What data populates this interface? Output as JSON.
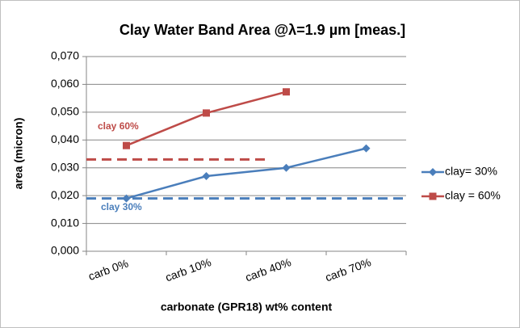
{
  "chart_data": {
    "type": "line",
    "title": "Clay Water Band Area @λ=1.9 µm [meas.]",
    "x_label": "carbonate (GPR18) wt% content",
    "y_label": "area (micron)",
    "categories": [
      "carb 0%",
      "carb 10%",
      "carb 40%",
      "carb 70%"
    ],
    "series": [
      {
        "name": "clay= 30%",
        "color": "#4a7ebb",
        "marker": "diamond",
        "values": [
          0.019,
          0.027,
          0.03,
          0.037
        ]
      },
      {
        "name": "clay = 60%",
        "color": "#be4b48",
        "marker": "square",
        "values": [
          0.038,
          0.0497,
          0.0573,
          null
        ]
      }
    ],
    "reference_lines": [
      {
        "value": 0.033,
        "color": "#be4b48"
      },
      {
        "value": 0.019,
        "color": "#4a7ebb"
      }
    ],
    "annotations": [
      {
        "text": "clay 60%",
        "color": "#be4b48"
      },
      {
        "text": "clay 30%",
        "color": "#4a7ebb"
      }
    ],
    "ylim": [
      0,
      0.07
    ],
    "yticks": [
      {
        "value": 0,
        "label": "0,000"
      },
      {
        "value": 0.01,
        "label": "0,010"
      },
      {
        "value": 0.02,
        "label": "0,020"
      },
      {
        "value": 0.03,
        "label": "0,030"
      },
      {
        "value": 0.04,
        "label": "0,040"
      },
      {
        "value": 0.05,
        "label": "0,050"
      },
      {
        "value": 0.06,
        "label": "0,060"
      },
      {
        "value": 0.07,
        "label": "0,070"
      }
    ],
    "grid": true,
    "legend": "right"
  }
}
